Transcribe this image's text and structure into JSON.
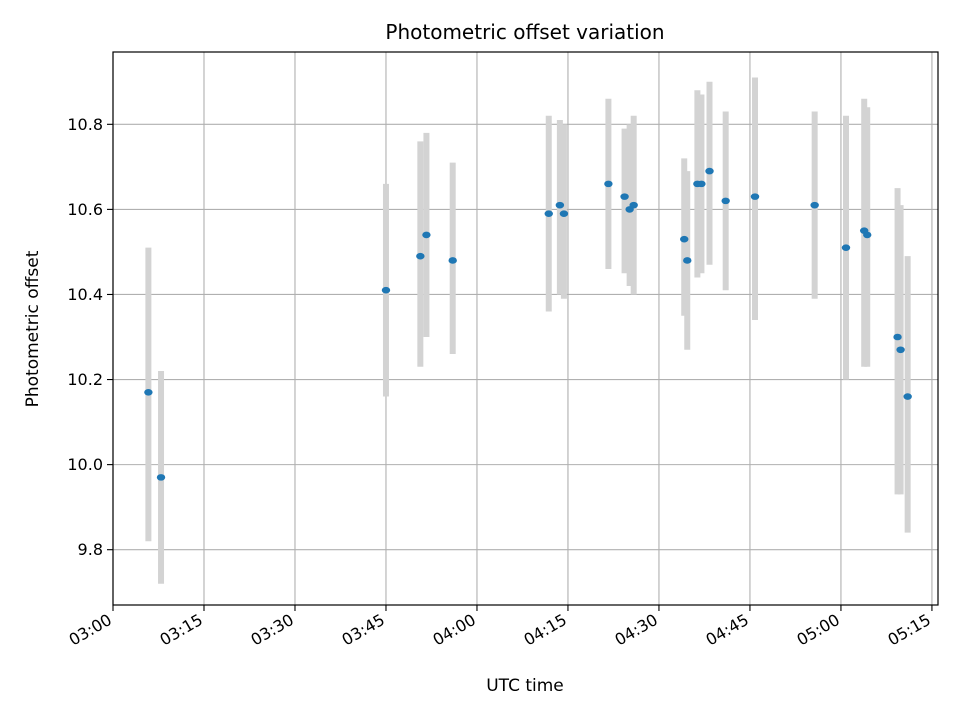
{
  "chart_data": {
    "type": "scatter",
    "title": "Photometric offset variation",
    "xlabel": "UTC time",
    "ylabel": "Photometric offset",
    "x_unit": "UTC HH:MM",
    "xlim": [
      "03:00",
      "05:16"
    ],
    "ylim": [
      9.67,
      10.97
    ],
    "xticks": [
      "03:00",
      "03:15",
      "03:30",
      "03:45",
      "04:00",
      "04:15",
      "04:30",
      "04:45",
      "05:00",
      "05:15"
    ],
    "yticks": [
      9.8,
      10.0,
      10.2,
      10.4,
      10.6,
      10.8
    ],
    "grid": true,
    "errorbar_color": "#d3d3d3",
    "point_color": "#1f77b4",
    "points": [
      {
        "t": "03:05:50",
        "y": 10.17,
        "lo": 9.82,
        "hi": 10.51
      },
      {
        "t": "03:07:55",
        "y": 9.97,
        "lo": 9.72,
        "hi": 10.22
      },
      {
        "t": "03:45:00",
        "y": 10.41,
        "lo": 10.16,
        "hi": 10.66
      },
      {
        "t": "03:50:40",
        "y": 10.49,
        "lo": 10.23,
        "hi": 10.76
      },
      {
        "t": "03:51:40",
        "y": 10.54,
        "lo": 10.3,
        "hi": 10.78
      },
      {
        "t": "03:56:00",
        "y": 10.48,
        "lo": 10.26,
        "hi": 10.71
      },
      {
        "t": "04:11:50",
        "y": 10.59,
        "lo": 10.36,
        "hi": 10.82
      },
      {
        "t": "04:13:40",
        "y": 10.61,
        "lo": 10.4,
        "hi": 10.81
      },
      {
        "t": "04:14:20",
        "y": 10.59,
        "lo": 10.39,
        "hi": 10.8
      },
      {
        "t": "04:21:40",
        "y": 10.66,
        "lo": 10.46,
        "hi": 10.86
      },
      {
        "t": "04:24:20",
        "y": 10.63,
        "lo": 10.45,
        "hi": 10.79
      },
      {
        "t": "04:25:10",
        "y": 10.6,
        "lo": 10.42,
        "hi": 10.8
      },
      {
        "t": "04:25:50",
        "y": 10.61,
        "lo": 10.4,
        "hi": 10.82
      },
      {
        "t": "04:34:10",
        "y": 10.53,
        "lo": 10.35,
        "hi": 10.72
      },
      {
        "t": "04:34:40",
        "y": 10.48,
        "lo": 10.27,
        "hi": 10.69
      },
      {
        "t": "04:36:20",
        "y": 10.66,
        "lo": 10.44,
        "hi": 10.88
      },
      {
        "t": "04:37:00",
        "y": 10.66,
        "lo": 10.45,
        "hi": 10.87
      },
      {
        "t": "04:38:20",
        "y": 10.69,
        "lo": 10.47,
        "hi": 10.9
      },
      {
        "t": "04:41:00",
        "y": 10.62,
        "lo": 10.41,
        "hi": 10.83
      },
      {
        "t": "04:45:50",
        "y": 10.63,
        "lo": 10.34,
        "hi": 10.91
      },
      {
        "t": "04:55:40",
        "y": 10.61,
        "lo": 10.39,
        "hi": 10.83
      },
      {
        "t": "05:00:50",
        "y": 10.51,
        "lo": 10.2,
        "hi": 10.82
      },
      {
        "t": "05:03:50",
        "y": 10.55,
        "lo": 10.23,
        "hi": 10.86
      },
      {
        "t": "05:04:20",
        "y": 10.54,
        "lo": 10.23,
        "hi": 10.84
      },
      {
        "t": "05:09:20",
        "y": 10.3,
        "lo": 9.93,
        "hi": 10.65
      },
      {
        "t": "05:09:50",
        "y": 10.27,
        "lo": 9.93,
        "hi": 10.61
      },
      {
        "t": "05:11:00",
        "y": 10.16,
        "lo": 9.84,
        "hi": 10.49
      }
    ]
  }
}
